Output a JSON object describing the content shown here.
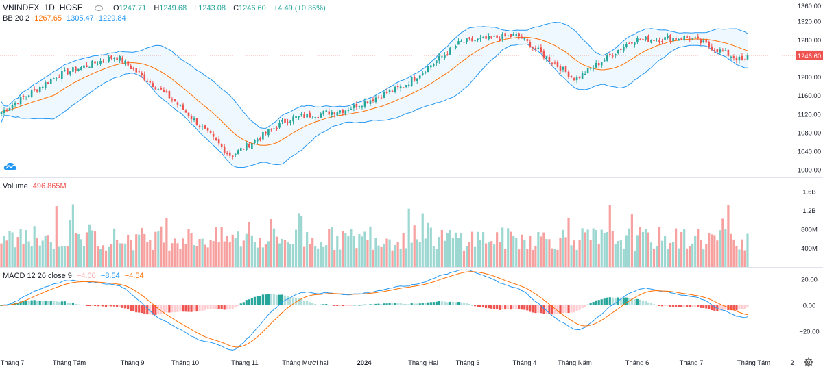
{
  "header": {
    "symbol": "VNINDEX",
    "interval": "1D",
    "exchange": "HOSE",
    "ohlc": {
      "o_label": "O",
      "o": "1247.71",
      "h_label": "H",
      "h": "1249.68",
      "l_label": "L",
      "l": "1243.08",
      "c_label": "C",
      "c": "1246.60",
      "change": "+4.49 (+0.36%)"
    }
  },
  "bb_legend": {
    "name": "BB 20 2",
    "basis": "1267.65",
    "upper": "1305.47",
    "lower": "1229.84"
  },
  "volume_legend": {
    "name": "Volume",
    "value": "496.865M"
  },
  "macd_legend": {
    "name": "MACD 12 26 close 9",
    "hist": "−4.00",
    "macd": "−8.54",
    "signal": "−4.54"
  },
  "last_price_label": "1246.60",
  "colors": {
    "up": "#26a69a",
    "down": "#ef5350",
    "bb_band": "#2196f3",
    "bb_basis": "#ff6d00",
    "macd": "#2196f3",
    "signal": "#ff6d00"
  },
  "price_axis": {
    "ticks": [
      "1320.00",
      "1280.00",
      "1240.00",
      "1200.00",
      "1160.00",
      "1120.00",
      "1080.00",
      "1040.00",
      "1000.00"
    ],
    "top_tick": "1360.00"
  },
  "volume_axis": {
    "ticks": [
      "1.6B",
      "1.2B",
      "800M",
      "400M"
    ]
  },
  "macd_axis": {
    "ticks": [
      "20.00",
      "0.00",
      "−20.00"
    ]
  },
  "time_axis": {
    "labels": [
      "Tháng 7",
      "Tháng Tám",
      "Tháng 9",
      "Tháng 10",
      "Tháng 11",
      "Tháng Mười hai",
      "2024",
      "Tháng Hai",
      "Tháng 3",
      "Tháng 4",
      "Tháng Năm",
      "Tháng 6",
      "Tháng 7",
      "Tháng Tám",
      "2"
    ]
  },
  "icons": {
    "logo": "tradingview-cloud-icon",
    "settings": "gear-icon"
  },
  "chart_data": {
    "type": "candlestick",
    "title": "VNINDEX 1D HOSE",
    "price_range": [
      990,
      1360
    ],
    "price_path_months": [
      "Tháng 7",
      "Tháng Tám",
      "Tháng 9",
      "Tháng 10",
      "Tháng 11",
      "Tháng Mười hai",
      "2024",
      "Tháng Hai",
      "Tháng 3",
      "Tháng 4",
      "Tháng Năm",
      "Tháng 6",
      "Tháng 7",
      "Tháng Tám"
    ],
    "price_path": [
      1125,
      1205,
      1245,
      1150,
      1030,
      1110,
      1130,
      1180,
      1275,
      1290,
      1195,
      1280,
      1285,
      1230
    ],
    "last_close": 1246.6,
    "volume_range_millions": [
      0,
      1800
    ],
    "macd_range": [
      -38,
      28
    ]
  }
}
